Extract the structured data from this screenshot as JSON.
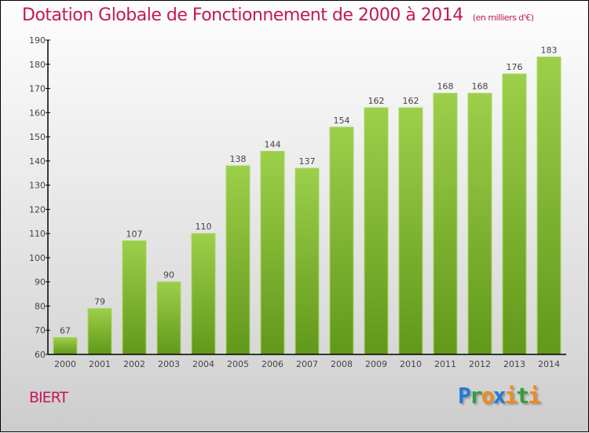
{
  "chart_data": {
    "type": "bar",
    "title": "Dotation Globale de Fonctionnement de 2000 à 2014",
    "subtitle": "(en milliers d'€)",
    "categories": [
      "2000",
      "2001",
      "2002",
      "2003",
      "2004",
      "2005",
      "2006",
      "2007",
      "2008",
      "2009",
      "2010",
      "2011",
      "2012",
      "2013",
      "2014"
    ],
    "values": [
      67,
      79,
      107,
      90,
      110,
      138,
      144,
      137,
      154,
      162,
      162,
      168,
      168,
      176,
      183
    ],
    "ylim": [
      60,
      190
    ],
    "yticks": [
      60,
      70,
      80,
      90,
      100,
      110,
      120,
      130,
      140,
      150,
      160,
      170,
      180,
      190
    ],
    "xlabel": "",
    "ylabel": "",
    "bar_color_top": "#9ccf4a",
    "bar_color_bottom": "#62981a",
    "grid": false
  },
  "commune": "BIERT",
  "logo": {
    "letters": [
      [
        "P",
        "#1e7bd6"
      ],
      [
        "r",
        "#2e9e3e"
      ],
      [
        "o",
        "#f08a1c"
      ],
      [
        "x",
        "#1e7bd6"
      ],
      [
        "i",
        "#f08a1c"
      ],
      [
        "t",
        "#2e9e3e"
      ],
      [
        "i",
        "#f08a1c"
      ]
    ],
    "text": "Proxiti"
  }
}
